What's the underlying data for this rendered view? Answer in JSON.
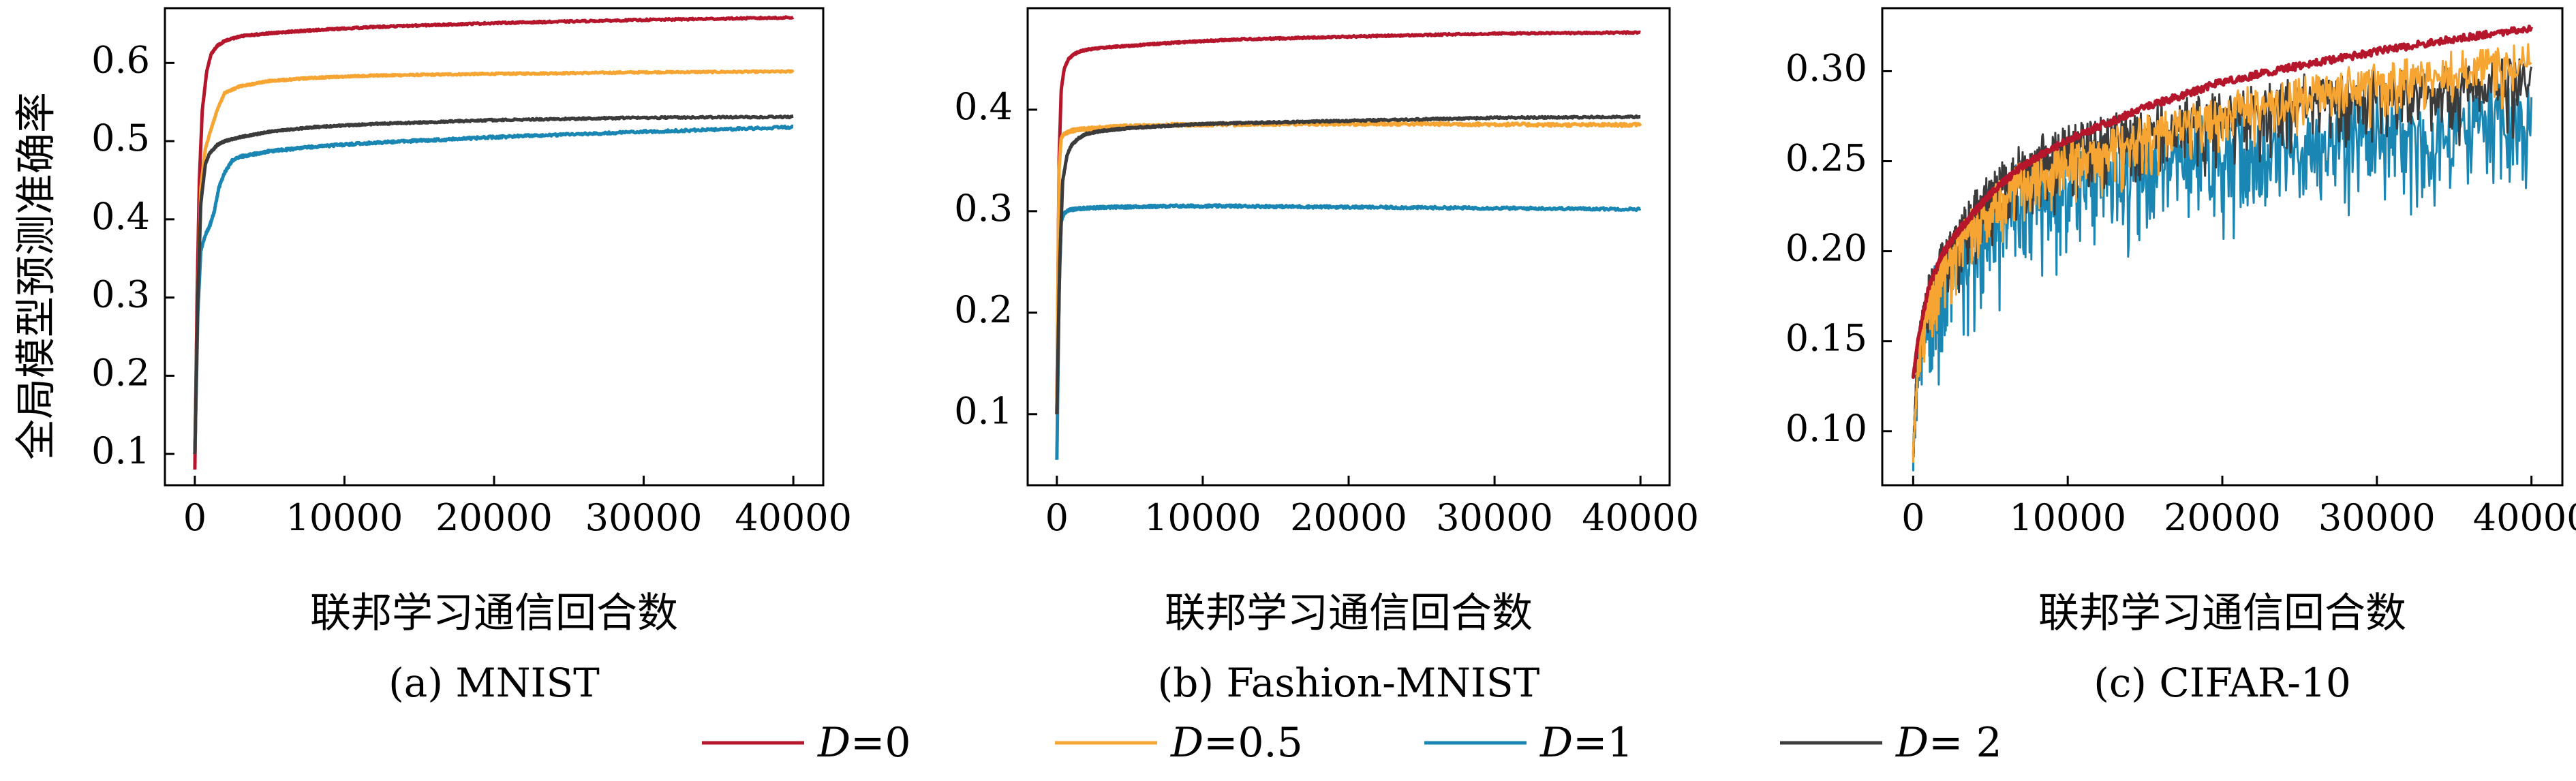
{
  "colors": {
    "D0": "#b5162b",
    "D05": "#f6a533",
    "D1": "#1a86b3",
    "D2": "#3b3b3b"
  },
  "figure": {
    "ylabel": "全局模型预测准确率",
    "legend": [
      {
        "symbol": "D",
        "label": "=0",
        "color_key": "D0"
      },
      {
        "symbol": "D",
        "label": "=0.5",
        "color_key": "D05"
      },
      {
        "symbol": "D",
        "label": "=1",
        "color_key": "D1"
      },
      {
        "symbol": "D",
        "label": "= 2",
        "color_key": "D2"
      }
    ]
  },
  "chart_data": [
    {
      "type": "line",
      "caption": "(a) MNIST",
      "xlabel": "联邦学习通信回合数",
      "ylabel": "全局模型预测准确率",
      "xlim": [
        -2000,
        42000
      ],
      "ylim": [
        0.06,
        0.67
      ],
      "xticks": [
        0,
        10000,
        20000,
        30000,
        40000
      ],
      "yticks": [
        0.1,
        0.2,
        0.3,
        0.4,
        0.5,
        0.6
      ],
      "series": [
        {
          "name": "D=0",
          "color_key": "D0",
          "noise": 0.001,
          "x": [
            0,
            150,
            300,
            500,
            800,
            1100,
            1500,
            2000,
            3000,
            5000,
            8000,
            12000,
            20000,
            30000,
            40000
          ],
          "y": [
            0.08,
            0.3,
            0.45,
            0.54,
            0.59,
            0.612,
            0.622,
            0.628,
            0.634,
            0.638,
            0.642,
            0.646,
            0.651,
            0.655,
            0.658
          ]
        },
        {
          "name": "D=0.5",
          "color_key": "D05",
          "noise": 0.001,
          "x": [
            0,
            200,
            400,
            700,
            1000,
            1500,
            2000,
            3000,
            5000,
            8000,
            12000,
            20000,
            30000,
            40000
          ],
          "y": [
            0.1,
            0.3,
            0.44,
            0.49,
            0.51,
            0.54,
            0.562,
            0.57,
            0.577,
            0.581,
            0.584,
            0.586,
            0.588,
            0.589
          ]
        },
        {
          "name": "D=1",
          "color_key": "D1",
          "noise": 0.0015,
          "x": [
            0,
            200,
            400,
            700,
            1000,
            1300,
            1600,
            2000,
            2500,
            3000,
            5000,
            8000,
            12000,
            20000,
            30000,
            40000
          ],
          "y": [
            0.1,
            0.28,
            0.36,
            0.38,
            0.392,
            0.41,
            0.44,
            0.46,
            0.475,
            0.48,
            0.487,
            0.493,
            0.498,
            0.505,
            0.512,
            0.518
          ]
        },
        {
          "name": "D= 2",
          "color_key": "D2",
          "noise": 0.001,
          "x": [
            0,
            200,
            400,
            700,
            1000,
            1500,
            2000,
            3000,
            5000,
            8000,
            12000,
            20000,
            30000,
            40000
          ],
          "y": [
            0.1,
            0.3,
            0.42,
            0.47,
            0.485,
            0.495,
            0.5,
            0.505,
            0.512,
            0.518,
            0.522,
            0.527,
            0.53,
            0.531
          ]
        }
      ]
    },
    {
      "type": "line",
      "caption": "(b) Fashion-MNIST",
      "xlabel": "联邦学习通信回合数",
      "ylabel": "",
      "xlim": [
        -2000,
        42000
      ],
      "ylim": [
        0.03,
        0.5
      ],
      "xticks": [
        0,
        10000,
        20000,
        30000,
        40000
      ],
      "yticks": [
        0.1,
        0.2,
        0.3,
        0.4
      ],
      "series": [
        {
          "name": "D=0",
          "color_key": "D0",
          "noise": 0.0008,
          "x": [
            0,
            150,
            300,
            500,
            800,
            1100,
            1500,
            2000,
            3000,
            5000,
            8000,
            12000,
            20000,
            30000,
            40000
          ],
          "y": [
            0.1,
            0.35,
            0.42,
            0.44,
            0.45,
            0.454,
            0.457,
            0.459,
            0.461,
            0.463,
            0.466,
            0.469,
            0.472,
            0.475,
            0.476
          ]
        },
        {
          "name": "D=0.5",
          "color_key": "D05",
          "noise": 0.0015,
          "x": [
            0,
            150,
            300,
            500,
            800,
            1200,
            2000,
            4000,
            8000,
            15000,
            25000,
            35000,
            40000
          ],
          "y": [
            0.1,
            0.34,
            0.372,
            0.376,
            0.378,
            0.38,
            0.381,
            0.383,
            0.385,
            0.386,
            0.386,
            0.385,
            0.385
          ]
        },
        {
          "name": "D=1",
          "color_key": "D1",
          "noise": 0.0012,
          "x": [
            0,
            150,
            300,
            500,
            800,
            1200,
            2000,
            4000,
            8000,
            12000,
            20000,
            30000,
            40000
          ],
          "y": [
            0.055,
            0.22,
            0.29,
            0.298,
            0.301,
            0.302,
            0.303,
            0.304,
            0.305,
            0.305,
            0.304,
            0.303,
            0.302
          ]
        },
        {
          "name": "D= 2",
          "color_key": "D2",
          "noise": 0.0008,
          "x": [
            0,
            200,
            400,
            700,
            1000,
            1500,
            2000,
            3000,
            5000,
            10000,
            20000,
            30000,
            40000
          ],
          "y": [
            0.1,
            0.25,
            0.33,
            0.355,
            0.365,
            0.372,
            0.376,
            0.379,
            0.382,
            0.386,
            0.389,
            0.392,
            0.393
          ]
        }
      ]
    },
    {
      "type": "line",
      "caption": "(c) CIFAR-10",
      "xlabel": "联邦学习通信回合数",
      "ylabel": "",
      "xlim": [
        -2000,
        42000
      ],
      "ylim": [
        0.07,
        0.335
      ],
      "xticks": [
        0,
        10000,
        20000,
        30000,
        40000
      ],
      "yticks": [
        0.1,
        0.15,
        0.2,
        0.25,
        0.3
      ],
      "yticklabels": [
        "0.10",
        "0.15",
        "0.20",
        "0.25",
        "0.30"
      ],
      "series": [
        {
          "name": "D=1",
          "color_key": "D1",
          "noise": 0.016,
          "x": [
            0,
            300,
            1000,
            2000,
            3000,
            4000,
            5000,
            7000,
            10000,
            15000,
            20000,
            25000,
            30000,
            35000,
            40000
          ],
          "y": [
            0.09,
            0.14,
            0.17,
            0.188,
            0.2,
            0.21,
            0.225,
            0.235,
            0.245,
            0.255,
            0.262,
            0.268,
            0.272,
            0.276,
            0.28
          ]
        },
        {
          "name": "D= 2",
          "color_key": "D2",
          "noise": 0.01,
          "x": [
            0,
            300,
            1000,
            2000,
            3000,
            5000,
            7000,
            10000,
            15000,
            20000,
            25000,
            30000,
            35000,
            40000
          ],
          "y": [
            0.09,
            0.15,
            0.18,
            0.198,
            0.212,
            0.235,
            0.25,
            0.262,
            0.272,
            0.28,
            0.288,
            0.292,
            0.296,
            0.3
          ]
        },
        {
          "name": "D=0.5",
          "color_key": "D05",
          "noise": 0.008,
          "x": [
            0,
            300,
            1000,
            2000,
            3000,
            5000,
            7000,
            10000,
            15000,
            20000,
            25000,
            30000,
            35000,
            40000
          ],
          "y": [
            0.09,
            0.14,
            0.175,
            0.195,
            0.208,
            0.228,
            0.242,
            0.254,
            0.268,
            0.28,
            0.29,
            0.298,
            0.304,
            0.31
          ]
        },
        {
          "name": "D=0",
          "color_key": "D0",
          "noise": 0.002,
          "x": [
            0,
            300,
            1000,
            2000,
            3000,
            5000,
            7000,
            10000,
            15000,
            20000,
            25000,
            30000,
            35000,
            40000
          ],
          "y": [
            0.13,
            0.15,
            0.18,
            0.2,
            0.212,
            0.232,
            0.247,
            0.262,
            0.28,
            0.294,
            0.303,
            0.311,
            0.318,
            0.324
          ]
        }
      ]
    }
  ]
}
